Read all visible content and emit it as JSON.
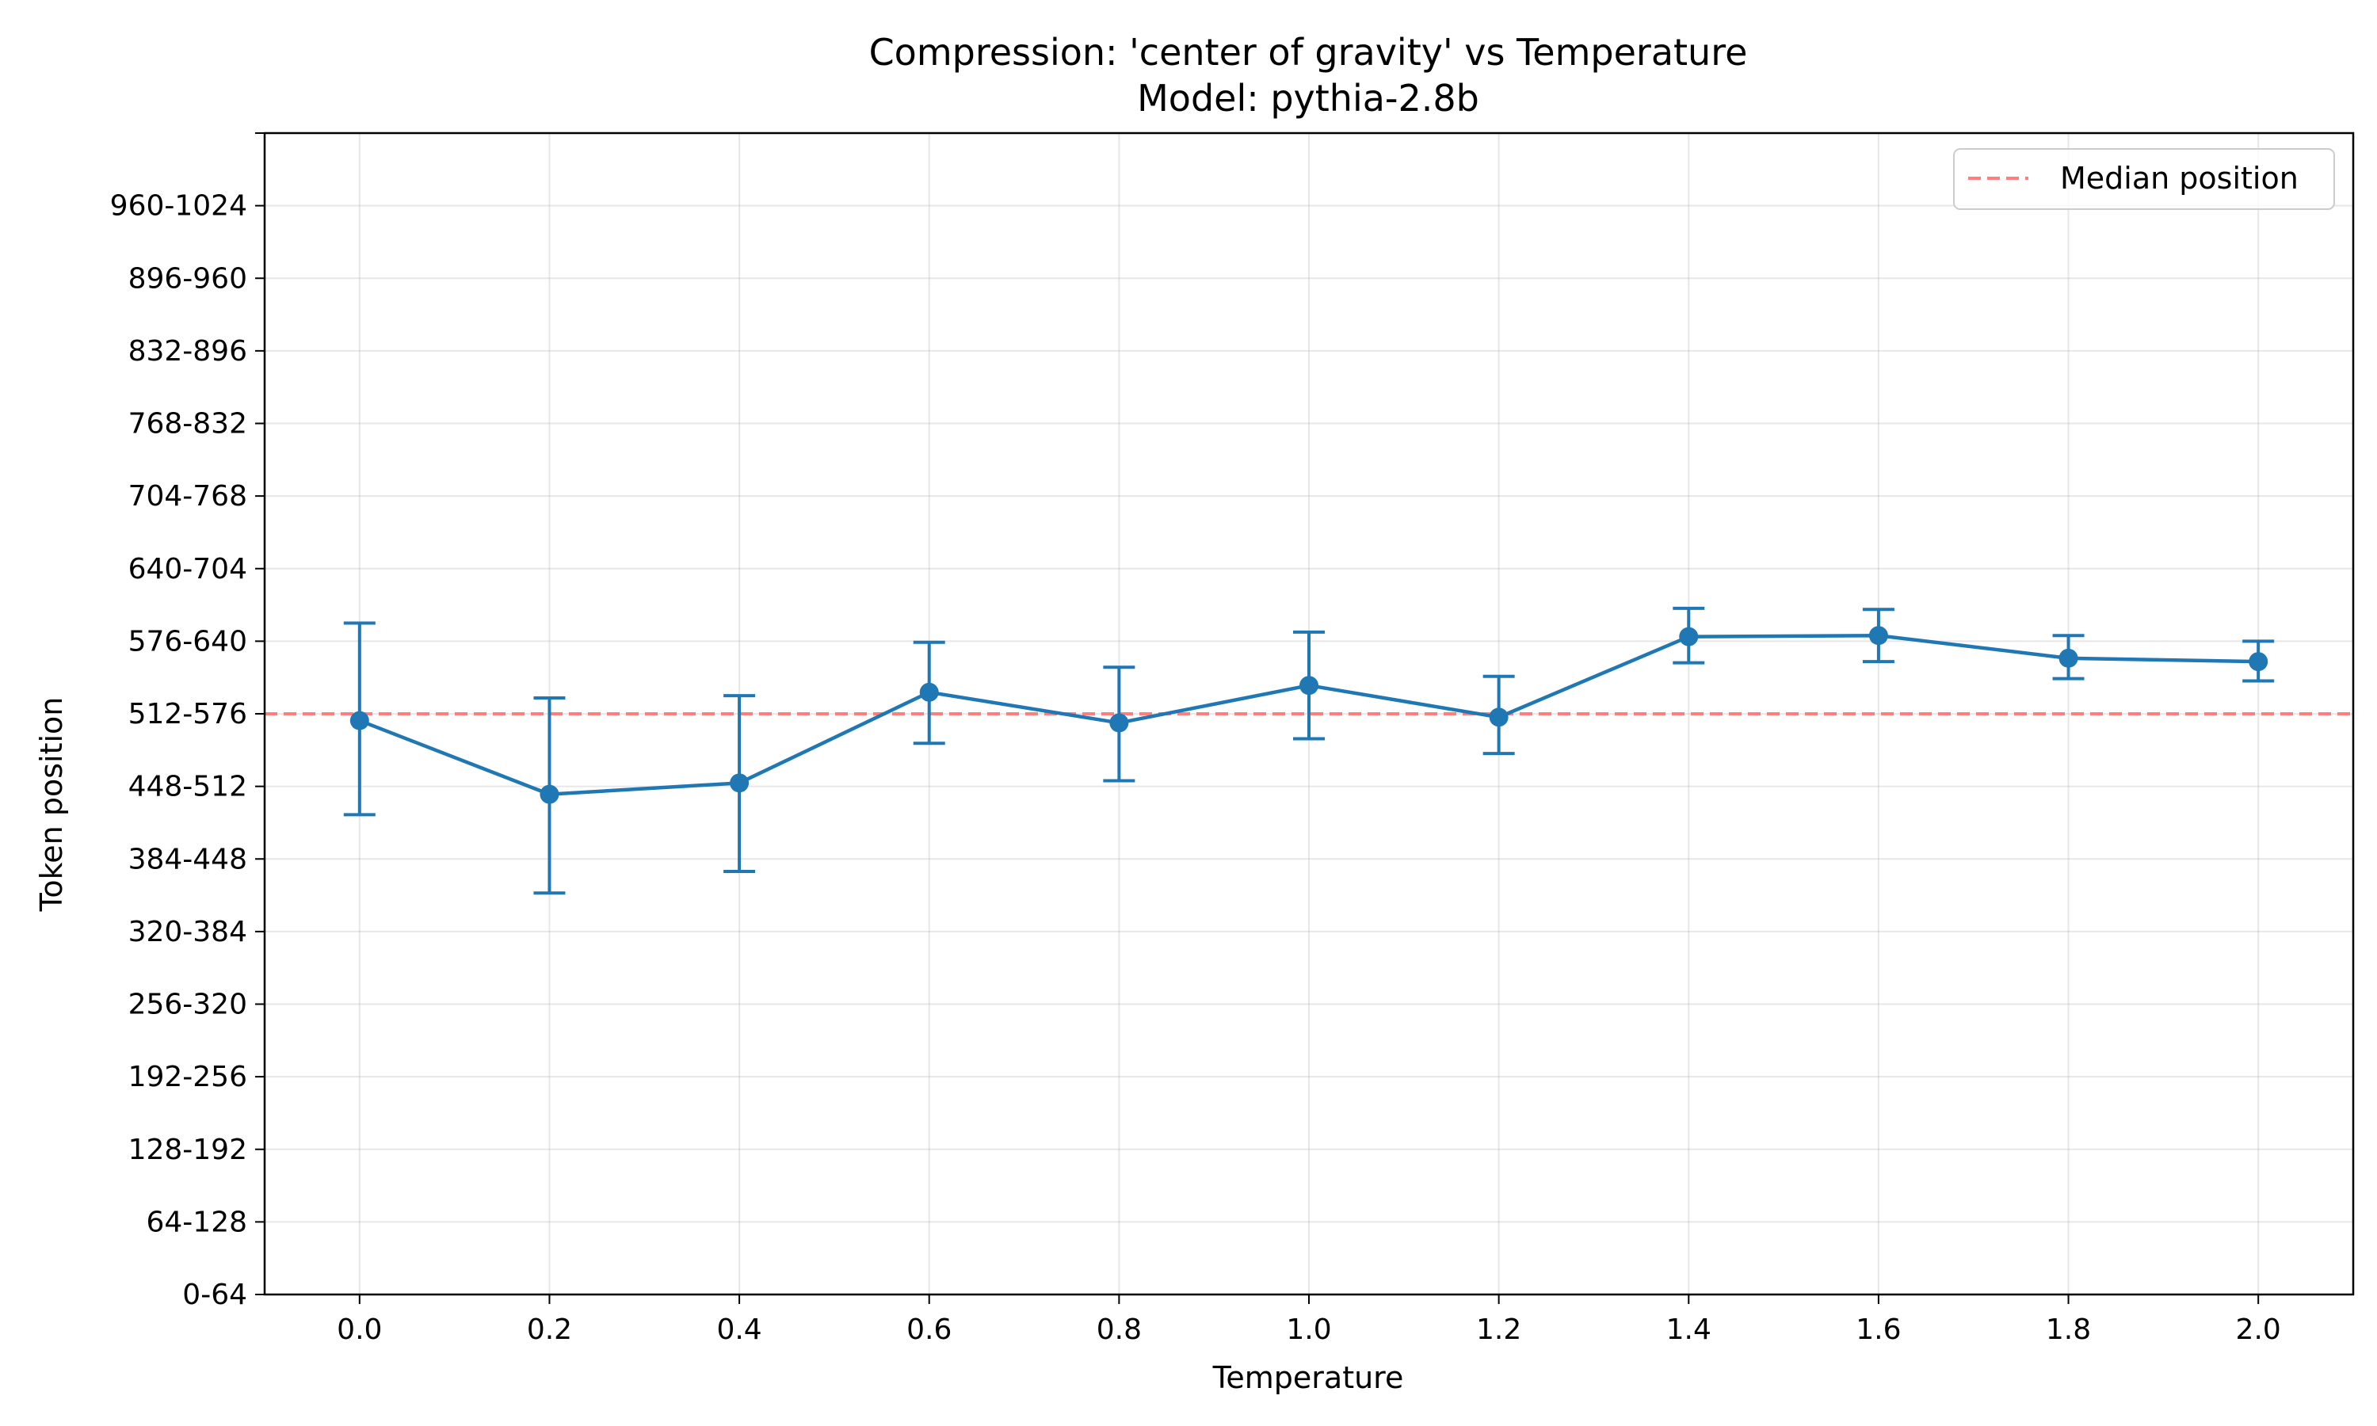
{
  "chart_data": {
    "type": "line",
    "title": "Compression: 'center of gravity' vs Temperature",
    "subtitle": "Model: pythia-2.8b",
    "xlabel": "Temperature",
    "ylabel": "Token position",
    "x_ticks": [
      "0.0",
      "0.2",
      "0.4",
      "0.6",
      "0.8",
      "1.0",
      "1.2",
      "1.4",
      "1.6",
      "1.8",
      "2.0"
    ],
    "y_ticks": [
      "0-64",
      "64-128",
      "128-192",
      "192-256",
      "256-320",
      "320-384",
      "384-448",
      "448-512",
      "512-576",
      "576-640",
      "640-704",
      "704-768",
      "768-832",
      "832-896",
      "896-960",
      "960-1024"
    ],
    "xlim": [
      -0.1,
      2.1
    ],
    "ylim": [
      0,
      1024
    ],
    "grid": true,
    "legend_position": "top-right",
    "series": [
      {
        "x": [
          0.0,
          0.2,
          0.4,
          0.6,
          0.8,
          1.0,
          1.2,
          1.4,
          1.6,
          1.8,
          2.0
        ],
        "y": [
          506,
          441,
          451,
          531,
          504,
          537,
          509,
          580,
          581,
          561,
          558
        ],
        "err_low": [
          423,
          354,
          373,
          486,
          453,
          490,
          477,
          557,
          558,
          543,
          541
        ],
        "err_high": [
          592,
          526,
          528,
          575,
          553,
          584,
          545,
          605,
          604,
          581,
          576
        ],
        "color": "#1f77b4"
      }
    ],
    "reference_lines": [
      {
        "name": "Median position",
        "y": 512,
        "color": "#ff7f7f",
        "style": "dashed"
      }
    ]
  }
}
